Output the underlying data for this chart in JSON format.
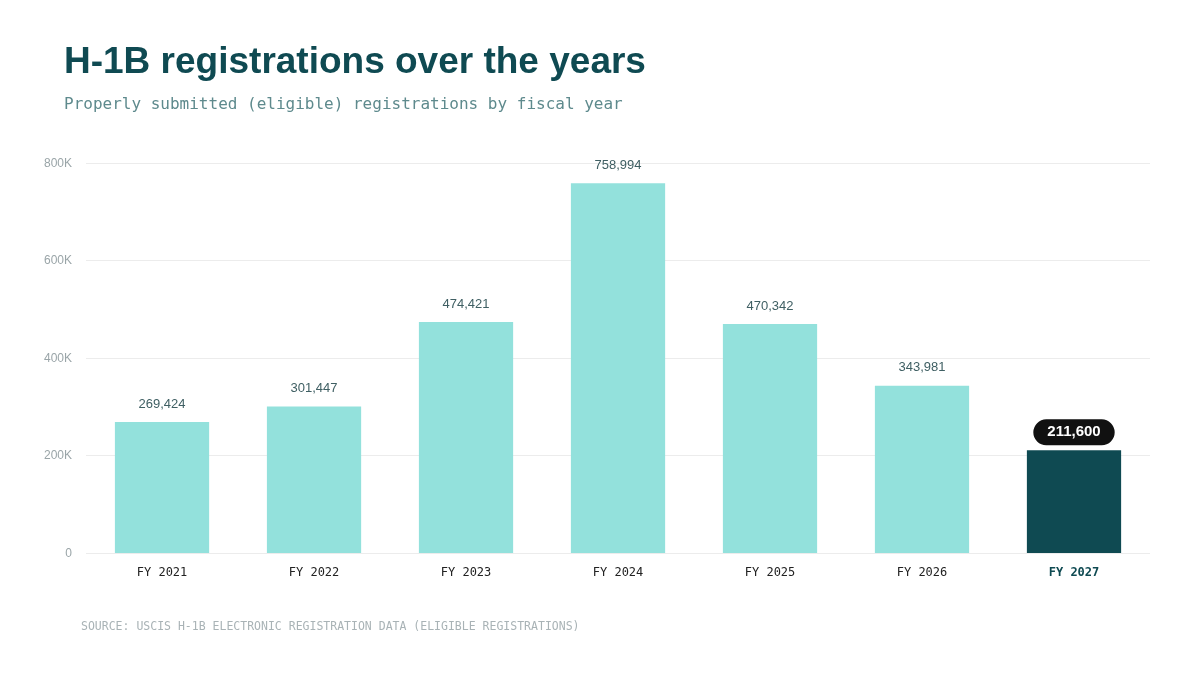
{
  "chart_data": {
    "type": "bar",
    "title": "H-1B registrations over the years",
    "subtitle": "Properly submitted (eligible) registrations by fiscal year",
    "categories": [
      "FY 2021",
      "FY 2022",
      "FY 2023",
      "FY 2024",
      "FY 2025",
      "FY 2026",
      "FY 2027"
    ],
    "values": [
      269424,
      301447,
      474421,
      758994,
      470342,
      343981,
      211600
    ],
    "colors": [
      "#93e1dc",
      "#93e1dc",
      "#93e1dc",
      "#93e1dc",
      "#93e1dc",
      "#93e1dc",
      "#0f4a52"
    ],
    "value_labels": [
      "269,424",
      "301,447",
      "474,421",
      "758,994",
      "470,342",
      "343,981",
      "211,600"
    ],
    "ylim": [
      0,
      800000
    ],
    "yticks": [
      0,
      {
        "value": 200000,
        "label": "200K"
      },
      {
        "value": 400000,
        "label": "400K"
      },
      {
        "value": 600000,
        "label": "600K"
      },
      {
        "value": 800000,
        "label": "800K"
      }
    ],
    "grid": "y",
    "legend": false,
    "annotations": [
      "SOURCE: USCIS H-1B ELECTRONIC REGISTRATION DATA (ELIGIBLE REGISTRATIONS)"
    ]
  }
}
